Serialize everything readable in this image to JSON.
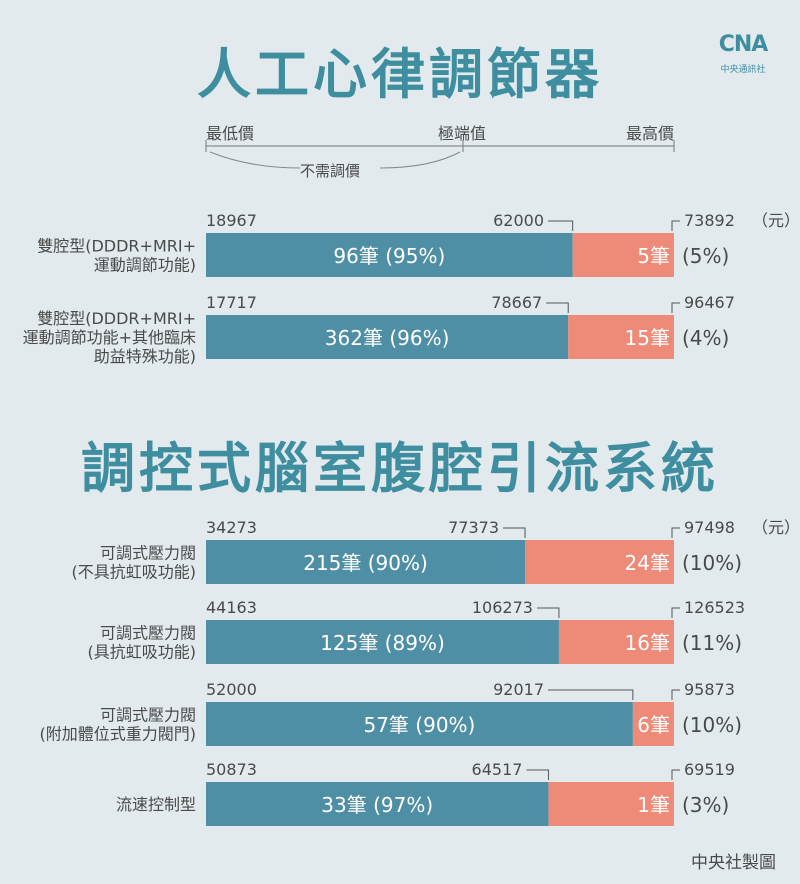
{
  "header": {
    "title_pacemaker": "人工心律調節器",
    "title_shunt": "調控式腦室腹腔引流系統",
    "logo_brand": "CNA",
    "logo_sub": "中央通訊社"
  },
  "legend": {
    "min_label": "最低價",
    "extreme_label": "極端值",
    "max_label": "最高價",
    "no_adjust_label": "不需調價"
  },
  "footer": {
    "credit": "中央社製圖"
  },
  "colors": {
    "normal_bar": "#4f8fa6",
    "extreme_bar": "#ee8a78",
    "title": "#3f8ea0",
    "text": "#4a4a4a"
  },
  "chart_data": [
    {
      "type": "bar",
      "title": "人工心律調節器",
      "unit": "（元）",
      "rows": [
        {
          "label": [
            "雙腔型(DDDR+MRI+",
            "運動調節功能)"
          ],
          "min": 18967,
          "threshold": 62000,
          "max": 73892,
          "normal_count": "96筆",
          "normal_pct": "(95%)",
          "extreme_count": "5筆",
          "extreme_pct": "(5%)",
          "min_text": "18967",
          "threshold_text": "62000",
          "max_text": "73892"
        },
        {
          "label": [
            "雙腔型(DDDR+MRI+",
            "運動調節功能+其他臨床",
            "助益特殊功能)"
          ],
          "min": 17717,
          "threshold": 78667,
          "max": 96467,
          "normal_count": "362筆",
          "normal_pct": "(96%)",
          "extreme_count": "15筆",
          "extreme_pct": "(4%)",
          "min_text": "17717",
          "threshold_text": "78667",
          "max_text": "96467"
        }
      ]
    },
    {
      "type": "bar",
      "title": "調控式腦室腹腔引流系統",
      "unit": "（元）",
      "rows": [
        {
          "label": [
            "可調式壓力閥",
            "(不具抗虹吸功能)"
          ],
          "min": 34273,
          "threshold": 77373,
          "max": 97498,
          "normal_count": "215筆",
          "normal_pct": "(90%)",
          "extreme_count": "24筆",
          "extreme_pct": "(10%)",
          "min_text": "34273",
          "threshold_text": "77373",
          "max_text": "97498"
        },
        {
          "label": [
            "可調式壓力閥",
            "(具抗虹吸功能)"
          ],
          "min": 44163,
          "threshold": 106273,
          "max": 126523,
          "normal_count": "125筆",
          "normal_pct": "(89%)",
          "extreme_count": "16筆",
          "extreme_pct": "(11%)",
          "min_text": "44163",
          "threshold_text": "106273",
          "max_text": "126523"
        },
        {
          "label": [
            "可調式壓力閥",
            "(附加體位式重力閥門)"
          ],
          "min": 52000,
          "threshold": 92017,
          "max": 95873,
          "normal_count": "57筆",
          "normal_pct": "(90%)",
          "extreme_count": "6筆",
          "extreme_pct": "(10%)",
          "min_text": "52000",
          "threshold_text": "92017",
          "max_text": "95873"
        },
        {
          "label": [
            "流速控制型"
          ],
          "min": 50873,
          "threshold": 64517,
          "max": 69519,
          "normal_count": "33筆",
          "normal_pct": "(97%)",
          "extreme_count": "1筆",
          "extreme_pct": "(3%)",
          "min_text": "50873",
          "threshold_text": "64517",
          "max_text": "69519"
        }
      ]
    }
  ]
}
